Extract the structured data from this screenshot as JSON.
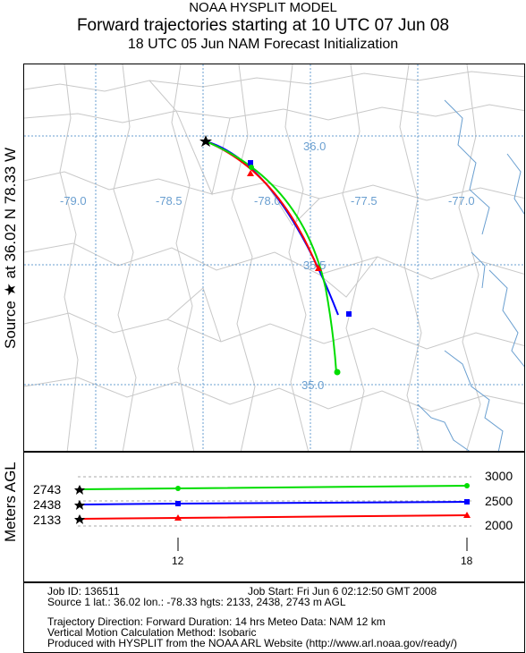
{
  "header": {
    "line1": "NOAA HYSPLIT MODEL",
    "line2": "Forward trajectories starting at 10 UTC 07 Jun 08",
    "line3": "18 UTC 05 Jun     NAM  Forecast Initialization"
  },
  "side_labels": {
    "source": "Source ★ at   36.02 N   78.33 W",
    "meters": "Meters AGL"
  },
  "map": {
    "lon_labels": [
      "-79.0",
      "-78.5",
      "-78.0",
      "-77.5",
      "-77.0"
    ],
    "lat_labels": [
      "36.0",
      "35.5",
      "35.0"
    ],
    "colors": {
      "red": "#ff0000",
      "blue": "#0000ff",
      "green": "#00dd00",
      "grid": "#6a9fd0",
      "borders": "#c8c8c8",
      "water": "#6a9fd0"
    }
  },
  "height_panel": {
    "start_heights": [
      "2743",
      "2438",
      "2133"
    ],
    "right_ticks": [
      "3000",
      "2500",
      "2000"
    ],
    "time_ticks": [
      "12",
      "18"
    ]
  },
  "footer": {
    "job_id": "Job ID: 136511",
    "job_start": "Job Start: Fri Jun  6 02:12:50 GMT 2008",
    "source_line": "Source 1 lat.: 36.02  lon.: -78.33  hgts: 2133, 2438, 2743 m AGL",
    "direction": "Trajectory Direction: Forward    Duration: 14 hrs     Meteo Data: NAM 12 km",
    "vertical": "Vertical Motion Calculation Method:       Isobaric",
    "produced": "Produced with HYSPLIT from the NOAA ARL Website (http://www.arl.noaa.gov/ready/)"
  },
  "chart_data": {
    "type": "line",
    "title": "Forward trajectories starting at 10 UTC 07 Jun 08",
    "xlabel": "",
    "ylabel": "Meters AGL",
    "x_ticks": [
      "12",
      "18"
    ],
    "ylim": [
      2000,
      3000
    ],
    "series": [
      {
        "color": "#00dd00",
        "marker": "circle",
        "heights": [
          2743,
          2760,
          2780
        ],
        "end_lat": 35.1,
        "end_lon": -77.7
      },
      {
        "color": "#0000ff",
        "marker": "square",
        "heights": [
          2438,
          2450,
          2460
        ],
        "end_lat": 35.38,
        "end_lon": -77.61
      },
      {
        "color": "#ff0000",
        "marker": "triangle",
        "heights": [
          2133,
          2165,
          2190
        ],
        "end_lat": 35.57,
        "end_lon": -77.77
      }
    ]
  }
}
